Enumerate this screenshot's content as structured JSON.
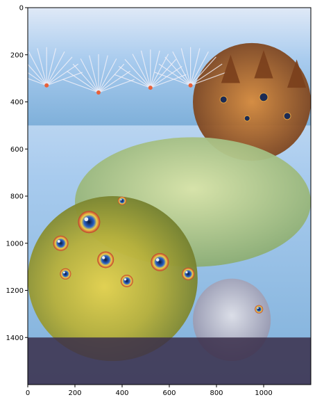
{
  "chart_data": {
    "type": "heatmap",
    "title": "",
    "xlabel": "",
    "ylabel": "",
    "xlim": [
      0,
      1200
    ],
    "ylim": [
      1600,
      0
    ],
    "y_axis_inverted": true,
    "grid": false,
    "legend": "none",
    "xticks": [
      0,
      200,
      400,
      600,
      800,
      1000
    ],
    "yticks": [
      0,
      200,
      400,
      600,
      800,
      1000,
      1200,
      1400
    ],
    "image_content": "psychedelic deep-dream style artwork",
    "image_regions": [
      {
        "label": "sky-and-fan-shapes",
        "x": [
          0,
          1200
        ],
        "y": [
          0,
          500
        ],
        "color": "#9fc6ea"
      },
      {
        "label": "dog-heads",
        "x": [
          700,
          1200
        ],
        "y": [
          150,
          650
        ],
        "color": "#b06a2c"
      },
      {
        "label": "green-dome-creatures",
        "x": [
          200,
          1200
        ],
        "y": [
          550,
          1100
        ],
        "color": "#b7c98a"
      },
      {
        "label": "large-lizard-head",
        "x": [
          0,
          720
        ],
        "y": [
          800,
          1500
        ],
        "color": "#c8b43a"
      },
      {
        "label": "eyes-cluster",
        "x": [
          100,
          700
        ],
        "y": [
          850,
          1250
        ],
        "color": "#c0392b"
      },
      {
        "label": "small-creature",
        "x": [
          700,
          1030
        ],
        "y": [
          1150,
          1500
        ],
        "color": "#c9c9d6"
      },
      {
        "label": "dark-foreground",
        "x": [
          0,
          1200
        ],
        "y": [
          1400,
          1600
        ],
        "color": "#3a2e4a"
      }
    ]
  }
}
